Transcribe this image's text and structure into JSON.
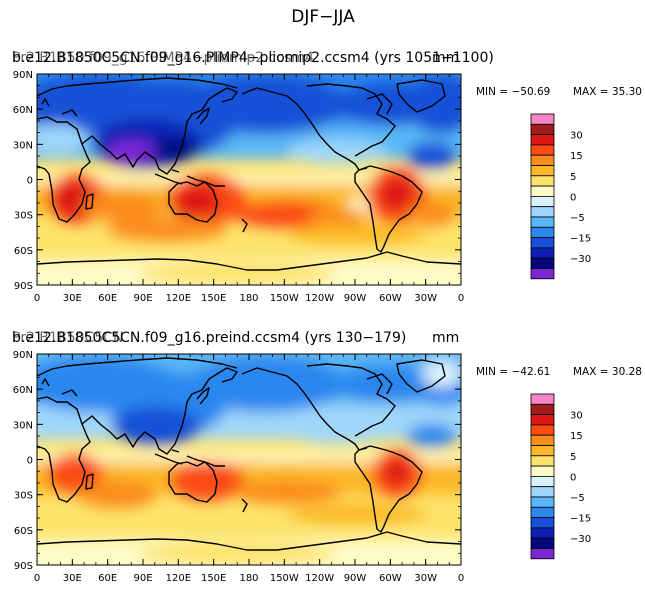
{
  "title": "DJF−JJA",
  "units": "mm",
  "panels": [
    {
      "label_a": "b.e12.B1850C5CN.f09_g16.PIMP4−pliomip2.ccsm4 (yrs 1051−1100)",
      "label_b": "Pr2.B1850.f09_g16.PIMP4−pliomip2.ccsm4",
      "min_text": "MIN = −50.69",
      "max_text": "MAX =  35.30"
    },
    {
      "label_a": "b.e12.B1850C5CN.f09_g16.preind.ccsm4 (yrs 130−179)",
      "label_b": "Pr2.B1850C5CN",
      "min_text": "MIN = −42.61",
      "max_text": "MAX =  30.28"
    }
  ],
  "lat_labels": [
    "90N",
    "60N",
    "30N",
    "0",
    "30S",
    "60S",
    "90S"
  ],
  "lon_labels": [
    "0",
    "30E",
    "60E",
    "90E",
    "120E",
    "150E",
    "180",
    "150W",
    "120W",
    "90W",
    "60W",
    "30W",
    "0"
  ],
  "colorbar": {
    "labels": [
      "30",
      "15",
      "5",
      "0",
      "−5",
      "−15",
      "−30"
    ],
    "colors": [
      "#f585c4",
      "#a11b1b",
      "#dd1515",
      "#fb4b12",
      "#fb8c1c",
      "#fbb828",
      "#fde36b",
      "#fefbc8",
      "#dcf1fb",
      "#9fd7fb",
      "#58b7f7",
      "#2a87ef",
      "#1651d7",
      "#0c20b5",
      "#06087a",
      "#7c27d6"
    ]
  },
  "chart_data": {
    "type": "heatmap",
    "title": "DJF−JJA",
    "units": "mm",
    "x_axis": [
      "0",
      "30E",
      "60E",
      "90E",
      "120E",
      "150E",
      "180",
      "150W",
      "120W",
      "90W",
      "60W",
      "30W",
      "0"
    ],
    "y_axis": [
      "90N",
      "60N",
      "30N",
      "0",
      "30S",
      "60S",
      "90S"
    ],
    "contour_levels": [
      -40,
      -30,
      -25,
      -20,
      -15,
      -10,
      -5,
      -2,
      0,
      2,
      5,
      10,
      15,
      20,
      30,
      40
    ],
    "panels": [
      {
        "name": "b.e12.B1850C5CN.f09_g16.PIMP4−pliomip2.ccsm4 (yrs 1051−1100)",
        "min": -50.69,
        "max": 35.3
      },
      {
        "name": "b.e12.B1850C5CN.f09_g16.preind.ccsm4 (yrs 130−179)",
        "min": -42.61,
        "max": 30.28
      }
    ]
  }
}
